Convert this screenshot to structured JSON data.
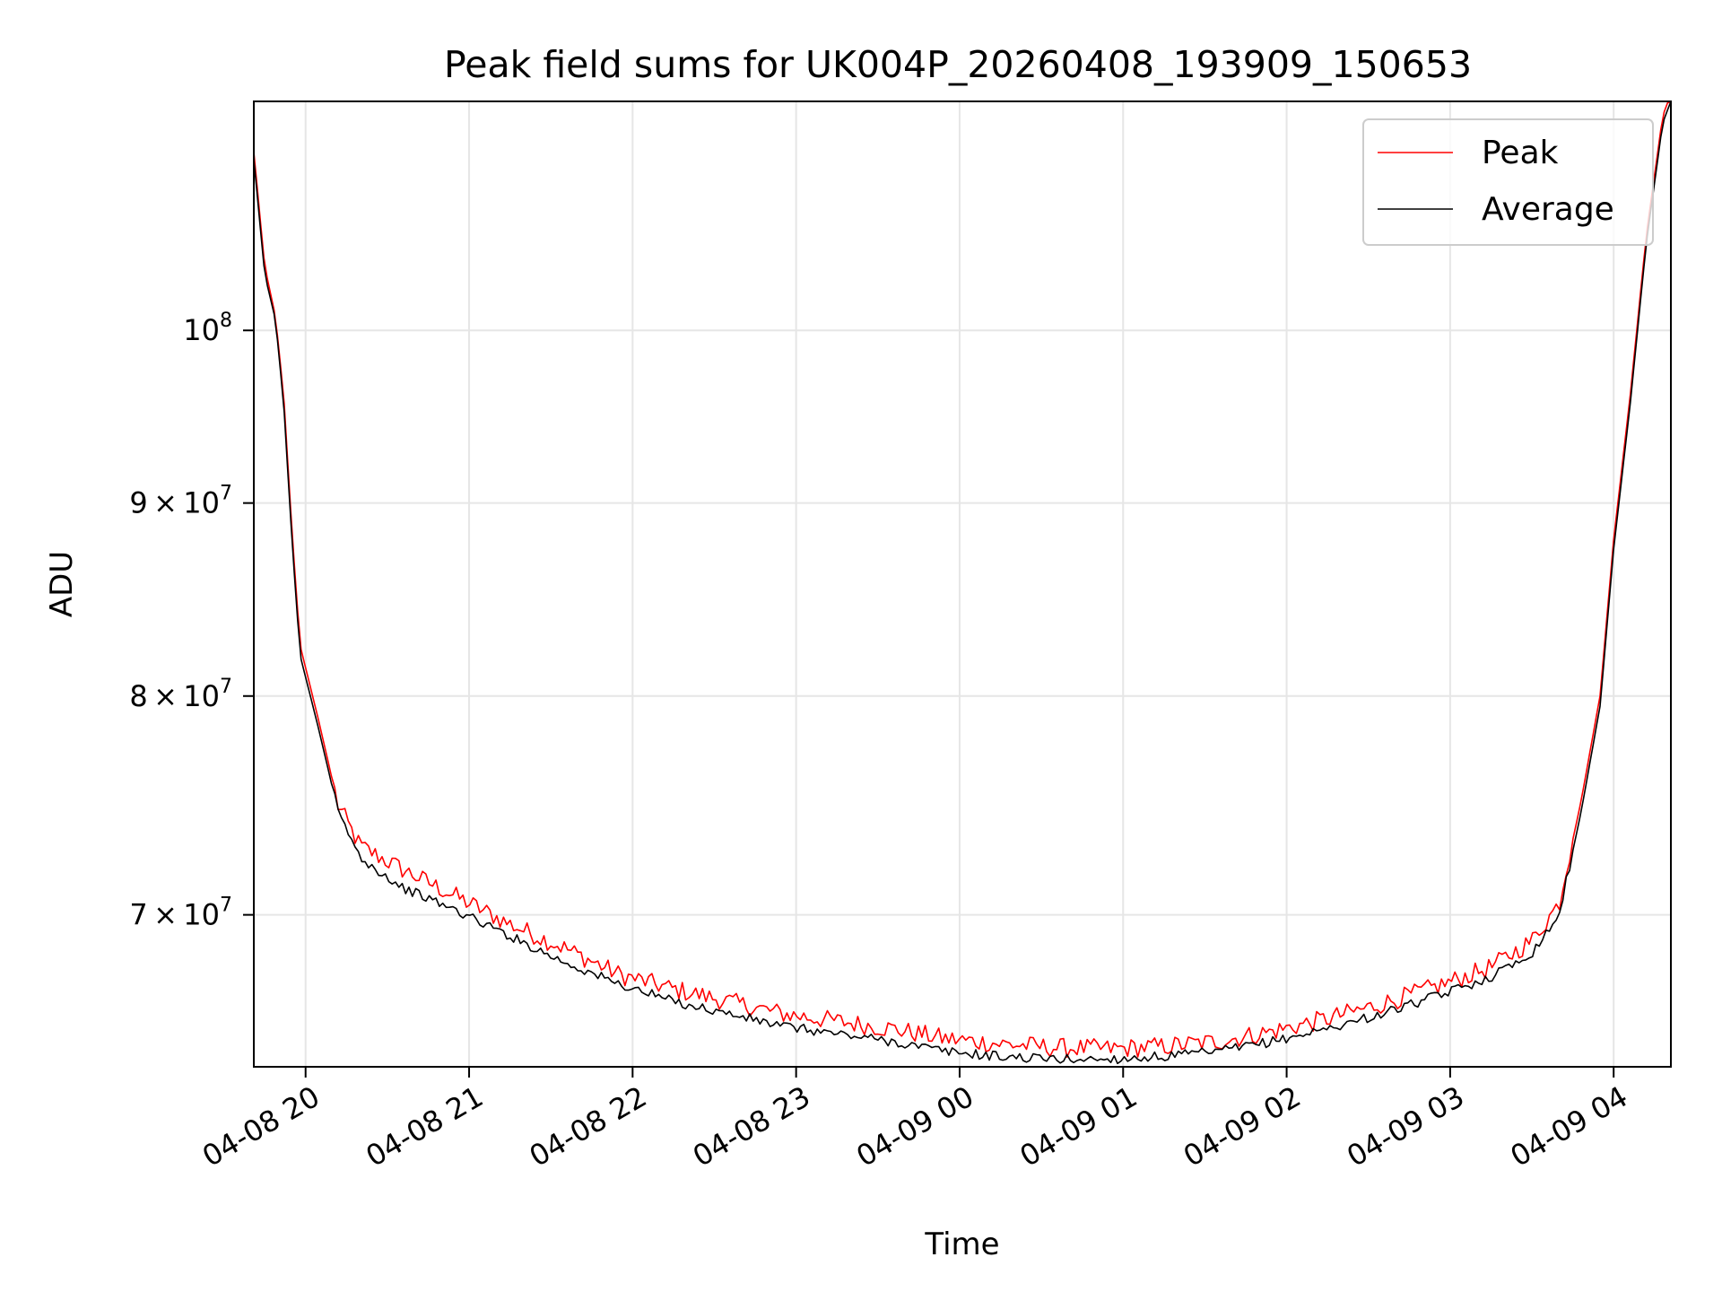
{
  "chart_data": {
    "type": "line",
    "title": "Peak field sums for UK004P_20260408_193909_150653",
    "xlabel": "Time",
    "ylabel": "ADU",
    "x_axis": "time",
    "x_tick_labels": [
      "04-08 20",
      "04-08 21",
      "04-08 22",
      "04-08 23",
      "04-09 00",
      "04-09 01",
      "04-09 02",
      "04-09 03",
      "04-09 04"
    ],
    "xlim": [
      "2026-04-08 19:41",
      "2026-04-09 04:21"
    ],
    "y_scale": "log",
    "ylim": [
      63800000,
      115000000
    ],
    "y_ticks": [
      {
        "value": 70000000,
        "base": "7",
        "exp": "7"
      },
      {
        "value": 80000000,
        "base": "8",
        "exp": "7"
      },
      {
        "value": 90000000,
        "base": "9",
        "exp": "7"
      },
      {
        "value": 100000000,
        "base": "10",
        "exp": "8"
      }
    ],
    "grid": true,
    "legend_position": "top-right",
    "series": [
      {
        "name": "Peak",
        "color": "#ff0000",
        "points": [
          [
            "2026-04-08 19:41",
            111500000
          ],
          [
            "2026-04-08 19:45",
            104000000
          ],
          [
            "2026-04-08 19:49",
            100800000
          ],
          [
            "2026-04-08 19:52",
            96000000
          ],
          [
            "2026-04-08 19:55",
            88500000
          ],
          [
            "2026-04-08 19:58",
            82500000
          ],
          [
            "2026-04-08 20:05",
            78700000
          ],
          [
            "2026-04-08 20:12",
            74800000
          ],
          [
            "2026-04-08 20:20",
            73000000
          ],
          [
            "2026-04-08 20:35",
            72000000
          ],
          [
            "2026-04-08 20:55",
            70800000
          ],
          [
            "2026-04-08 21:15",
            69600000
          ],
          [
            "2026-04-08 21:35",
            68600000
          ],
          [
            "2026-04-08 21:55",
            67500000
          ],
          [
            "2026-04-08 22:15",
            66900000
          ],
          [
            "2026-04-08 22:35",
            66400000
          ],
          [
            "2026-04-08 22:55",
            65900000
          ],
          [
            "2026-04-08 23:15",
            65600000
          ],
          [
            "2026-04-08 23:35",
            65300000
          ],
          [
            "2026-04-08 23:55",
            64900000
          ],
          [
            "2026-04-09 00:15",
            64700000
          ],
          [
            "2026-04-09 00:35",
            64550000
          ],
          [
            "2026-04-09 00:55",
            64500000
          ],
          [
            "2026-04-09 01:15",
            64600000
          ],
          [
            "2026-04-09 01:35",
            64800000
          ],
          [
            "2026-04-09 01:55",
            65200000
          ],
          [
            "2026-04-09 02:15",
            65700000
          ],
          [
            "2026-04-09 02:35",
            66300000
          ],
          [
            "2026-04-09 02:55",
            67000000
          ],
          [
            "2026-04-09 03:15",
            67800000
          ],
          [
            "2026-04-09 03:30",
            68900000
          ],
          [
            "2026-04-09 03:40",
            70500000
          ],
          [
            "2026-04-09 03:48",
            75000000
          ],
          [
            "2026-04-09 03:55",
            80000000
          ],
          [
            "2026-04-09 04:00",
            88000000
          ],
          [
            "2026-04-09 04:06",
            96000000
          ],
          [
            "2026-04-09 04:12",
            106000000
          ],
          [
            "2026-04-09 04:18",
            114000000
          ],
          [
            "2026-04-09 04:21",
            115500000
          ]
        ]
      },
      {
        "name": "Average",
        "color": "#000000",
        "points": [
          [
            "2026-04-08 19:41",
            111000000
          ],
          [
            "2026-04-08 19:45",
            103500000
          ],
          [
            "2026-04-08 19:49",
            100600000
          ],
          [
            "2026-04-08 19:52",
            95500000
          ],
          [
            "2026-04-08 19:55",
            88000000
          ],
          [
            "2026-04-08 19:58",
            82000000
          ],
          [
            "2026-04-08 20:05",
            78300000
          ],
          [
            "2026-04-08 20:12",
            74500000
          ],
          [
            "2026-04-08 20:20",
            72500000
          ],
          [
            "2026-04-08 20:35",
            71200000
          ],
          [
            "2026-04-08 20:55",
            70200000
          ],
          [
            "2026-04-08 21:15",
            69100000
          ],
          [
            "2026-04-08 21:35",
            68000000
          ],
          [
            "2026-04-08 21:55",
            67100000
          ],
          [
            "2026-04-08 22:15",
            66400000
          ],
          [
            "2026-04-08 22:35",
            65900000
          ],
          [
            "2026-04-08 22:55",
            65400000
          ],
          [
            "2026-04-08 23:15",
            65100000
          ],
          [
            "2026-04-08 23:35",
            64800000
          ],
          [
            "2026-04-08 23:55",
            64400000
          ],
          [
            "2026-04-09 00:15",
            64200000
          ],
          [
            "2026-04-09 00:35",
            64100000
          ],
          [
            "2026-04-09 00:55",
            64100000
          ],
          [
            "2026-04-09 01:15",
            64200000
          ],
          [
            "2026-04-09 01:35",
            64400000
          ],
          [
            "2026-04-09 01:55",
            64800000
          ],
          [
            "2026-04-09 02:15",
            65300000
          ],
          [
            "2026-04-09 02:35",
            65900000
          ],
          [
            "2026-04-09 02:55",
            66600000
          ],
          [
            "2026-04-09 03:15",
            67400000
          ],
          [
            "2026-04-09 03:30",
            68400000
          ],
          [
            "2026-04-09 03:40",
            70000000
          ],
          [
            "2026-04-09 03:48",
            74500000
          ],
          [
            "2026-04-09 03:55",
            79500000
          ],
          [
            "2026-04-09 04:00",
            87500000
          ],
          [
            "2026-04-09 04:06",
            95500000
          ],
          [
            "2026-04-09 04:12",
            105500000
          ],
          [
            "2026-04-09 04:18",
            113500000
          ],
          [
            "2026-04-09 04:21",
            115000000
          ]
        ]
      }
    ]
  }
}
